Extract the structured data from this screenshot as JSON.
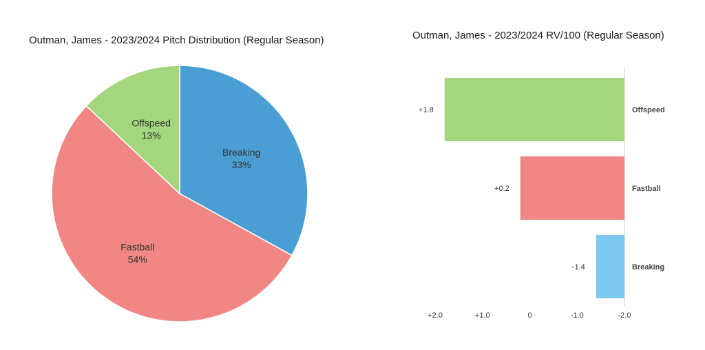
{
  "chart_data": [
    {
      "type": "pie",
      "title": "Outman, James - 2023/2024 Pitch Distribution (Regular Season)",
      "slices": [
        {
          "label": "Breaking",
          "value": 33,
          "value_label": "33%",
          "color": "#4a9ed4"
        },
        {
          "label": "Fastball",
          "value": 54,
          "value_label": "54%",
          "color": "#f08784"
        },
        {
          "label": "Offspeed",
          "value": 13,
          "value_label": "13%",
          "color": "#a3d67d"
        }
      ]
    },
    {
      "type": "bar",
      "orientation": "horizontal",
      "title": "Outman, James - 2023/2024 RV/100 (Regular Season)",
      "categories": [
        "Offspeed",
        "Fastball",
        "Breaking"
      ],
      "values": [
        1.8,
        0.2,
        -1.4
      ],
      "value_labels": [
        "+1.8",
        "+0.2",
        "-1.4"
      ],
      "colors": [
        "#a3d67d",
        "#f08784",
        "#7cc8f0"
      ],
      "xlim": [
        -2.0,
        2.0
      ],
      "xticks": [
        -2.0,
        -1.0,
        0,
        1.0,
        2.0
      ],
      "xtick_labels": [
        "-2.0",
        "-1.0",
        "0",
        "+1.0",
        "+2.0"
      ],
      "x_reversed": true,
      "grid": false
    }
  ]
}
